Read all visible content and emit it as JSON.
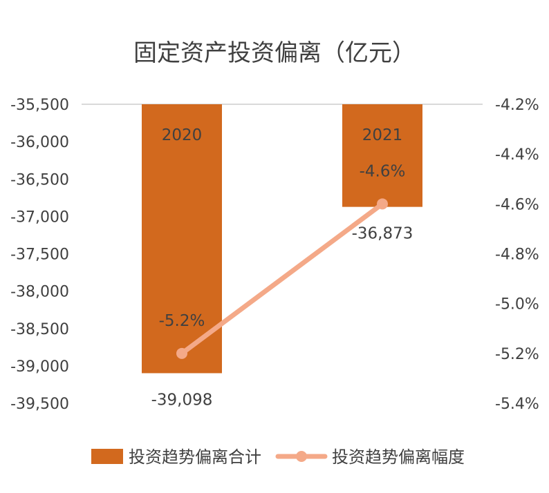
{
  "chart_data": {
    "type": "bar",
    "title": "固定资产投资偏离（亿元）",
    "categories": [
      "2020",
      "2021"
    ],
    "series": [
      {
        "name": "投资趋势偏离合计",
        "kind": "bar",
        "axis": "left",
        "values": [
          -39098,
          -36873
        ],
        "labels": [
          "-39,098",
          "-36,873"
        ]
      },
      {
        "name": "投资趋势偏离幅度",
        "kind": "line",
        "axis": "right",
        "values": [
          -5.2,
          -4.6
        ],
        "labels": [
          "-5.2%",
          "-4.6%"
        ]
      }
    ],
    "left_axis": {
      "min": -39500,
      "max": -35500,
      "ticks": [
        -35500,
        -36000,
        -36500,
        -37000,
        -37500,
        -38000,
        -38500,
        -39000,
        -39500
      ],
      "tick_labels": [
        "-35,500",
        "-36,000",
        "-36,500",
        "-37,000",
        "-37,500",
        "-38,000",
        "-38,500",
        "-39,000",
        "-39,500"
      ]
    },
    "right_axis": {
      "min": -5.4,
      "max": -4.2,
      "ticks": [
        -4.2,
        -4.4,
        -4.6,
        -4.8,
        -5.0,
        -5.2,
        -5.4
      ],
      "tick_labels": [
        "-4.2%",
        "-4.4%",
        "-4.6%",
        "-4.8%",
        "-5.0%",
        "-5.2%",
        "-5.4%"
      ]
    },
    "legend_position": "bottom",
    "grid": false,
    "colors": {
      "bar": "#D2691E",
      "line": "#F4A988",
      "text": "#404040",
      "axis_line": "#d9d9d9"
    }
  }
}
